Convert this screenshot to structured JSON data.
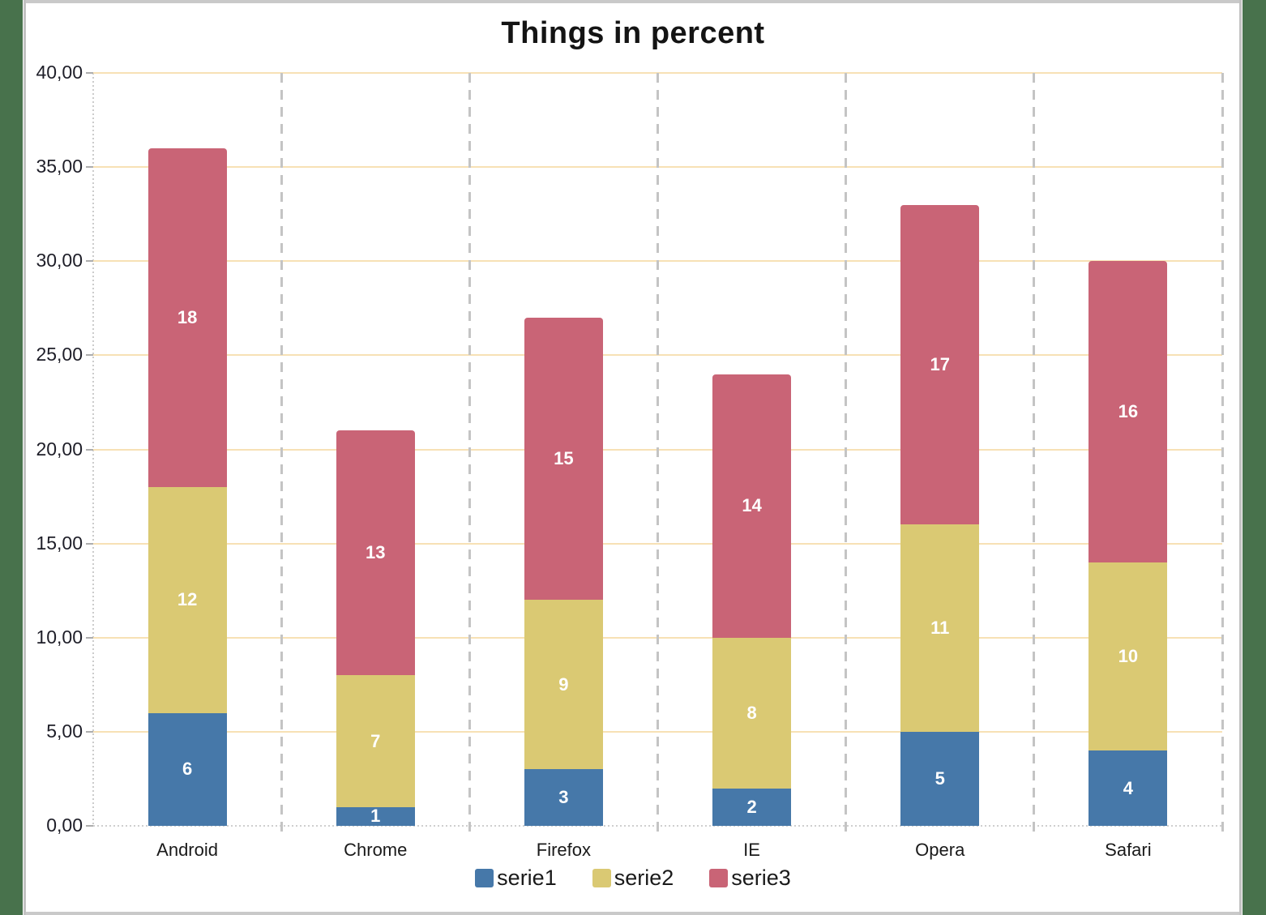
{
  "window": {
    "border_green": "#48724C",
    "border_gray": "#C9C9C9"
  },
  "chart_data": {
    "type": "bar",
    "stacked": true,
    "title": "Things in percent",
    "categories": [
      "Android",
      "Chrome",
      "Firefox",
      "IE",
      "Opera",
      "Safari"
    ],
    "series": [
      {
        "name": "serie1",
        "color": "#4678A9",
        "values": [
          6,
          1,
          3,
          2,
          5,
          4
        ]
      },
      {
        "name": "serie2",
        "color": "#DAC973",
        "values": [
          12,
          7,
          9,
          8,
          11,
          10
        ]
      },
      {
        "name": "serie3",
        "color": "#C96476",
        "values": [
          18,
          13,
          15,
          14,
          17,
          16
        ]
      }
    ],
    "totals": [
      36,
      21,
      27,
      24,
      33,
      30
    ],
    "ylim": [
      0,
      40
    ],
    "ytick_step": 5,
    "ytick_labels": [
      "0,00",
      "5,00",
      "10,00",
      "15,00",
      "20,00",
      "25,00",
      "30,00",
      "35,00",
      "40,00"
    ],
    "grid": {
      "horizontal": "on",
      "vertical": "on",
      "hgrid_color": "#F7E1B5",
      "vgrid_color": "#C4C4C4",
      "axis_color": "#ADADAD"
    },
    "value_labels": "white, bold, centered in each segment",
    "legend_position": "bottom-center"
  }
}
